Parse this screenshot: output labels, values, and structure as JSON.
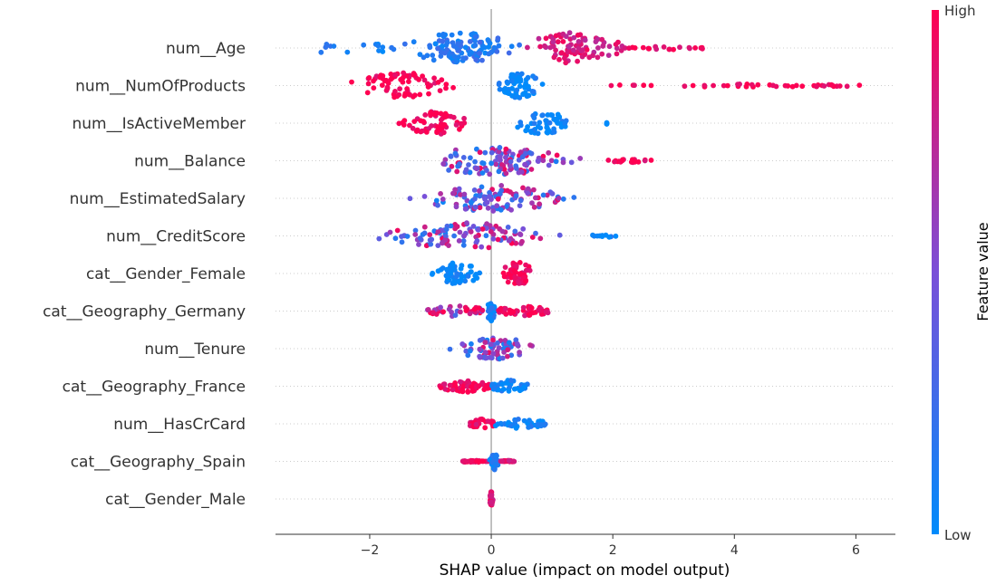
{
  "chart_data": {
    "type": "scatter",
    "subtype": "shap-beeswarm",
    "title": "",
    "xlabel": "SHAP value (impact on model output)",
    "xlim": [
      -3.55,
      6.65
    ],
    "xticks": [
      -2,
      0,
      2,
      4,
      6
    ],
    "xtick_labels": [
      "−2",
      "0",
      "2",
      "4",
      "6"
    ],
    "zero_line": 0,
    "colorbar": {
      "label": "Feature value",
      "high_label": "High",
      "low_label": "Low",
      "low_color": "#008bfb",
      "mid_color": "#7a4fd8",
      "high_color": "#ff0051"
    },
    "features": [
      {
        "name": "num__Age",
        "spread": 1.0,
        "clusters": [
          [
            -3.05,
            -1.6,
            0.35,
            5,
            0.1
          ],
          [
            -1.7,
            0.7,
            1.0,
            38,
            0.15
          ],
          [
            0.3,
            2.4,
            0.75,
            28,
            0.85
          ],
          [
            2.2,
            3.55,
            0.3,
            7,
            0.95
          ]
        ]
      },
      {
        "name": "num__NumOfProducts",
        "spread": 0.85,
        "clusters": [
          [
            -2.5,
            -0.4,
            0.8,
            24,
            0.98
          ],
          [
            0.0,
            0.95,
            1.0,
            22,
            0.02
          ],
          [
            1.9,
            6.15,
            0.18,
            14,
            0.98
          ]
        ]
      },
      {
        "name": "num__IsActiveMember",
        "spread": 0.75,
        "clusters": [
          [
            -1.65,
            -0.25,
            0.75,
            20,
            0.98
          ],
          [
            0.25,
            1.45,
            0.75,
            18,
            0.02
          ],
          [
            1.9,
            1.9,
            0.15,
            1,
            0.02
          ]
        ]
      },
      {
        "name": "num__Balance",
        "spread": 0.95,
        "clusters": [
          [
            -1.5,
            1.7,
            1.0,
            40,
            0.55
          ],
          [
            1.9,
            2.7,
            0.2,
            6,
            0.95
          ]
        ]
      },
      {
        "name": "num__EstimatedSalary",
        "spread": 0.85,
        "clusters": [
          [
            -1.5,
            1.6,
            1.0,
            36,
            0.5
          ]
        ]
      },
      {
        "name": "num__CreditScore",
        "spread": 0.85,
        "clusters": [
          [
            -2.1,
            1.3,
            1.0,
            38,
            0.55
          ],
          [
            1.65,
            2.1,
            0.2,
            4,
            0.05
          ]
        ]
      },
      {
        "name": "cat__Gender_Female",
        "spread": 0.75,
        "clusters": [
          [
            -1.05,
            -0.05,
            0.8,
            20,
            0.02
          ],
          [
            0.05,
            0.8,
            0.8,
            18,
            0.98
          ]
        ]
      },
      {
        "name": "cat__Geography_Germany",
        "spread": 0.65,
        "clusters": [
          [
            -1.05,
            -0.1,
            0.35,
            12,
            0.7
          ],
          [
            -0.1,
            0.1,
            0.9,
            12,
            0.1
          ],
          [
            0.1,
            0.95,
            0.4,
            18,
            0.95
          ]
        ]
      },
      {
        "name": "num__Tenure",
        "spread": 0.7,
        "clusters": [
          [
            -0.8,
            1.0,
            0.85,
            24,
            0.5
          ]
        ]
      },
      {
        "name": "cat__Geography_France",
        "spread": 0.7,
        "clusters": [
          [
            -0.85,
            0.0,
            0.55,
            18,
            0.95
          ],
          [
            0.0,
            0.6,
            0.6,
            14,
            0.05
          ]
        ]
      },
      {
        "name": "num__HasCrCard",
        "spread": 0.55,
        "clusters": [
          [
            -0.35,
            0.05,
            0.55,
            12,
            0.95
          ],
          [
            0.05,
            0.9,
            0.35,
            14,
            0.05
          ]
        ]
      },
      {
        "name": "cat__Geography_Spain",
        "spread": 0.55,
        "clusters": [
          [
            -0.5,
            -0.05,
            0.3,
            12,
            0.95
          ],
          [
            -0.05,
            0.15,
            0.9,
            12,
            0.1
          ],
          [
            0.15,
            0.38,
            0.3,
            8,
            0.9
          ]
        ]
      },
      {
        "name": "cat__Gender_Male",
        "spread": 0.5,
        "clusters": [
          [
            -0.03,
            0.03,
            0.85,
            14,
            0.9
          ]
        ]
      }
    ]
  }
}
